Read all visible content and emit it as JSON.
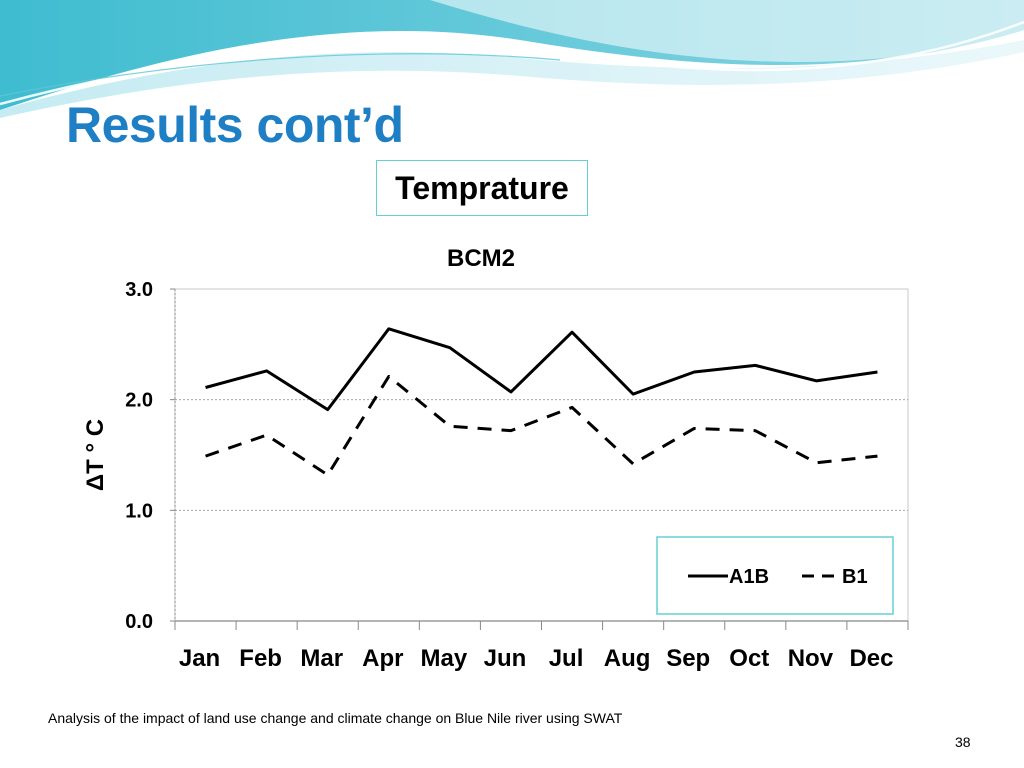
{
  "slide": {
    "title": "Results cont’d",
    "subtitle": "Temprature",
    "footer": "Analysis of the impact of land use change and climate change on Blue Nile river using SWAT",
    "page_number": "38",
    "accent_color": "#1f7fc4",
    "banner_colors": [
      "#49c1d3",
      "#8fd8e4",
      "#e3f5f9"
    ]
  },
  "chart_data": {
    "type": "line",
    "title": "BCM2",
    "xlabel": "",
    "ylabel": "ΔT ° C",
    "categories": [
      "Jan",
      "Feb",
      "Mar",
      "Apr",
      "May",
      "Jun",
      "Jul",
      "Aug",
      "Sep",
      "Oct",
      "Nov",
      "Dec"
    ],
    "ylim": [
      0,
      3
    ],
    "yticks": [
      0,
      1,
      2,
      3
    ],
    "ytick_labels": [
      "0.0",
      "1.0",
      "2.0",
      "3.0"
    ],
    "grid": true,
    "legend_position": "bottom-right",
    "series": [
      {
        "name": "A1B",
        "style": "solid",
        "color": "#000000",
        "values": [
          2.11,
          2.26,
          1.91,
          2.64,
          2.47,
          2.07,
          2.61,
          2.05,
          2.25,
          2.31,
          2.17,
          2.25
        ]
      },
      {
        "name": "B1",
        "style": "dashed",
        "color": "#000000",
        "values": [
          1.49,
          1.68,
          1.32,
          2.21,
          1.76,
          1.72,
          1.93,
          1.42,
          1.74,
          1.72,
          1.43,
          1.49
        ]
      }
    ]
  }
}
